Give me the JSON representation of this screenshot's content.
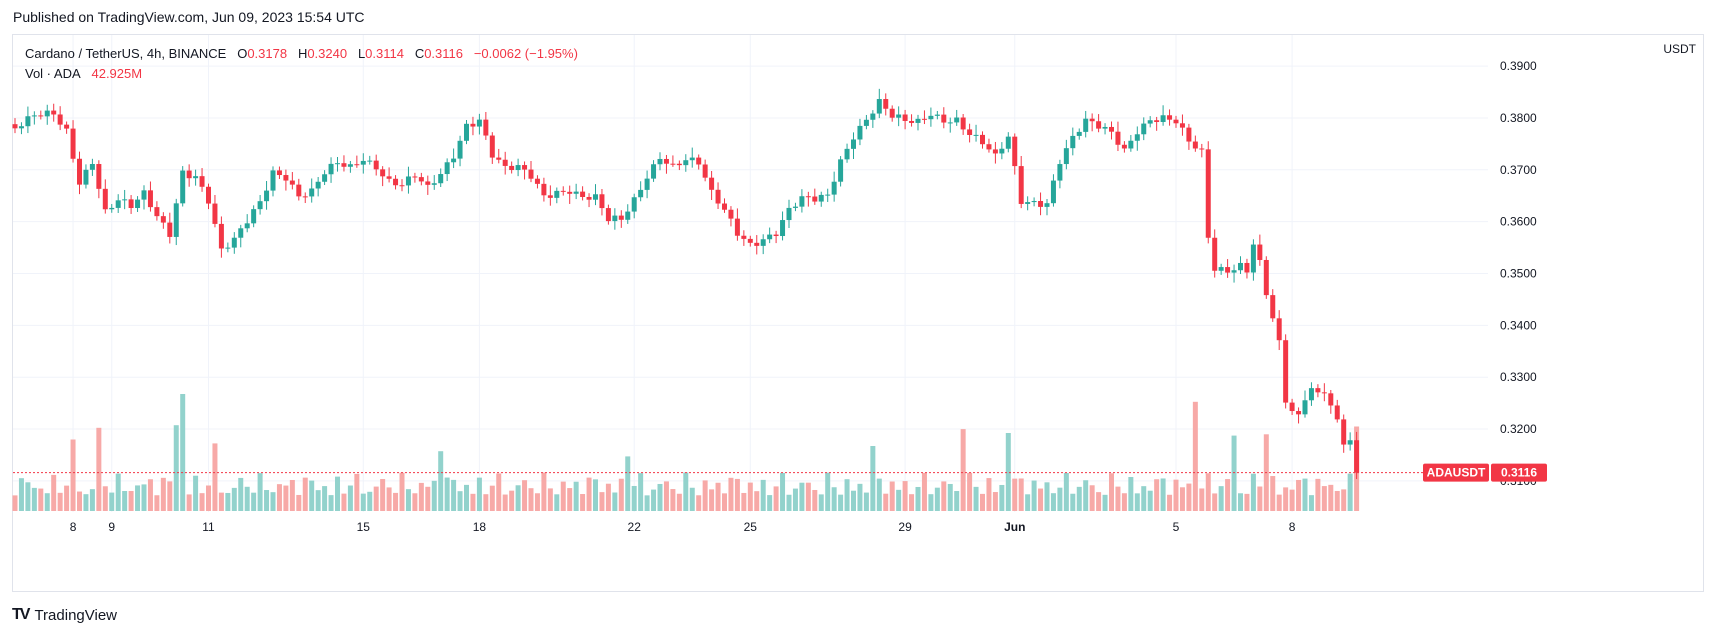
{
  "header": {
    "published": "Published on TradingView.com, Jun 09, 2023 15:54 UTC"
  },
  "legend": {
    "title": "Cardano / TetherUS, 4h, BINANCE",
    "o_label": "O",
    "o": "0.3178",
    "h_label": "H",
    "h": "0.3240",
    "l_label": "L",
    "l": "0.3114",
    "c_label": "C",
    "c": "0.3116",
    "change": "−0.0062 (−1.95%)",
    "vol_label": "Vol · ADA",
    "vol": "42.925M"
  },
  "axis": {
    "unit": "USDT"
  },
  "footer": {
    "brand": "TradingView"
  },
  "colors": {
    "up": "#26a69a",
    "down": "#f23645",
    "up_vol": "#92d2cc",
    "down_vol": "#f7a9a7",
    "grid": "#f0f3fa"
  },
  "chart_data": {
    "type": "candlestick",
    "symbol": "ADAUSDT",
    "last_price": "0.3116",
    "price_ticks": [
      "0.3100",
      "0.3200",
      "0.3300",
      "0.3400",
      "0.3500",
      "0.3600",
      "0.3700",
      "0.3800",
      "0.3900"
    ],
    "ylim": [
      0.304,
      0.396
    ],
    "x_ticks": [
      {
        "label": "8",
        "index": 9
      },
      {
        "label": "9",
        "index": 15
      },
      {
        "label": "11",
        "index": 30
      },
      {
        "label": "15",
        "index": 54
      },
      {
        "label": "18",
        "index": 72
      },
      {
        "label": "22",
        "index": 96
      },
      {
        "label": "25",
        "index": 114
      },
      {
        "label": "29",
        "index": 138
      },
      {
        "label": "Jun",
        "index": 155
      },
      {
        "label": "5",
        "index": 180
      },
      {
        "label": "8",
        "index": 198
      }
    ],
    "close_anchors": [
      [
        0,
        0.378
      ],
      [
        3,
        0.38
      ],
      [
        6,
        0.3805
      ],
      [
        8,
        0.3775
      ],
      [
        10,
        0.368
      ],
      [
        12,
        0.372
      ],
      [
        14,
        0.362
      ],
      [
        16,
        0.364
      ],
      [
        18,
        0.3625
      ],
      [
        20,
        0.365
      ],
      [
        22,
        0.361
      ],
      [
        24,
        0.358
      ],
      [
        26,
        0.37
      ],
      [
        28,
        0.369
      ],
      [
        30,
        0.364
      ],
      [
        32,
        0.354
      ],
      [
        34,
        0.356
      ],
      [
        36,
        0.36
      ],
      [
        38,
        0.364
      ],
      [
        40,
        0.37
      ],
      [
        42,
        0.369
      ],
      [
        44,
        0.365
      ],
      [
        46,
        0.3655
      ],
      [
        48,
        0.369
      ],
      [
        50,
        0.371
      ],
      [
        52,
        0.3705
      ],
      [
        54,
        0.3725
      ],
      [
        56,
        0.371
      ],
      [
        58,
        0.368
      ],
      [
        60,
        0.367
      ],
      [
        62,
        0.3685
      ],
      [
        64,
        0.366
      ],
      [
        66,
        0.369
      ],
      [
        68,
        0.373
      ],
      [
        70,
        0.379
      ],
      [
        72,
        0.38
      ],
      [
        74,
        0.373
      ],
      [
        76,
        0.37
      ],
      [
        78,
        0.37
      ],
      [
        80,
        0.3685
      ],
      [
        82,
        0.365
      ],
      [
        84,
        0.366
      ],
      [
        86,
        0.3665
      ],
      [
        88,
        0.365
      ],
      [
        90,
        0.3645
      ],
      [
        92,
        0.36
      ],
      [
        94,
        0.36
      ],
      [
        96,
        0.364
      ],
      [
        98,
        0.369
      ],
      [
        100,
        0.373
      ],
      [
        102,
        0.371
      ],
      [
        104,
        0.372
      ],
      [
        106,
        0.371
      ],
      [
        108,
        0.365
      ],
      [
        110,
        0.362
      ],
      [
        112,
        0.358
      ],
      [
        114,
        0.356
      ],
      [
        116,
        0.357
      ],
      [
        118,
        0.358
      ],
      [
        120,
        0.362
      ],
      [
        122,
        0.364
      ],
      [
        124,
        0.364
      ],
      [
        126,
        0.365
      ],
      [
        128,
        0.372
      ],
      [
        130,
        0.377
      ],
      [
        132,
        0.38
      ],
      [
        134,
        0.383
      ],
      [
        136,
        0.38
      ],
      [
        138,
        0.379
      ],
      [
        140,
        0.379
      ],
      [
        142,
        0.381
      ],
      [
        144,
        0.38
      ],
      [
        146,
        0.38
      ],
      [
        148,
        0.377
      ],
      [
        150,
        0.375
      ],
      [
        152,
        0.372
      ],
      [
        154,
        0.376
      ],
      [
        156,
        0.364
      ],
      [
        158,
        0.364
      ],
      [
        160,
        0.364
      ],
      [
        162,
        0.372
      ],
      [
        164,
        0.376
      ],
      [
        166,
        0.379
      ],
      [
        168,
        0.378
      ],
      [
        170,
        0.377
      ],
      [
        172,
        0.374
      ],
      [
        174,
        0.378
      ],
      [
        176,
        0.38
      ],
      [
        178,
        0.38
      ],
      [
        180,
        0.379
      ],
      [
        182,
        0.375
      ],
      [
        184,
        0.373
      ],
      [
        185,
        0.357
      ],
      [
        186,
        0.351
      ],
      [
        188,
        0.351
      ],
      [
        190,
        0.352
      ],
      [
        191,
        0.351
      ],
      [
        192,
        0.356
      ],
      [
        193,
        0.352
      ],
      [
        194,
        0.346
      ],
      [
        195,
        0.341
      ],
      [
        196,
        0.336
      ],
      [
        197,
        0.325
      ],
      [
        198,
        0.323
      ],
      [
        199,
        0.322
      ],
      [
        200,
        0.326
      ],
      [
        201,
        0.328
      ],
      [
        202,
        0.327
      ],
      [
        203,
        0.328
      ],
      [
        204,
        0.325
      ],
      [
        205,
        0.322
      ],
      [
        206,
        0.318
      ],
      [
        207,
        0.3178
      ],
      [
        208,
        0.3116
      ]
    ],
    "volume_peaks": [
      {
        "index": 9,
        "rel": 0.55
      },
      {
        "index": 13,
        "rel": 0.64
      },
      {
        "index": 25,
        "rel": 0.66
      },
      {
        "index": 26,
        "rel": 0.9
      },
      {
        "index": 31,
        "rel": 0.52
      },
      {
        "index": 66,
        "rel": 0.46
      },
      {
        "index": 95,
        "rel": 0.42
      },
      {
        "index": 133,
        "rel": 0.5
      },
      {
        "index": 147,
        "rel": 0.63
      },
      {
        "index": 154,
        "rel": 0.6
      },
      {
        "index": 183,
        "rel": 0.84
      },
      {
        "index": 189,
        "rel": 0.58
      },
      {
        "index": 194,
        "rel": 0.59
      },
      {
        "index": 208,
        "rel": 0.65
      }
    ]
  }
}
